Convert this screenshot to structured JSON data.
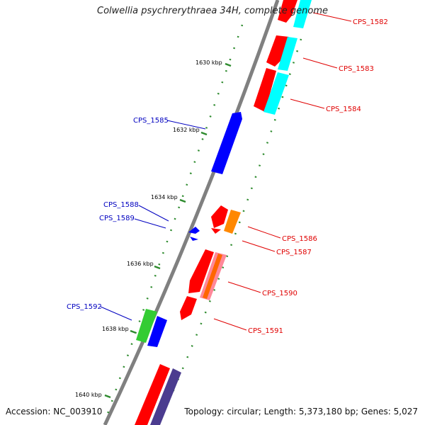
{
  "title": "Colwellia psychrerythraea 34H, complete genome",
  "footer": {
    "accession": "Accession: NC_003910",
    "summary": "Topology: circular; Length: 5,373,180 bp; Genes: 5,027"
  },
  "colors": {
    "backbone": "#808080",
    "plus_label": "#e00000",
    "minus_label": "#0000c0",
    "tick": "#2e8b2e",
    "red": "#ff0000",
    "cyan": "#00ffff",
    "blue": "#0000ff",
    "orange": "#ff8800",
    "green": "#33cc33",
    "navy": "#4b3c8f"
  },
  "ticks": [
    "1630 kbp",
    "1632 kbp",
    "1634 kbp",
    "1636 kbp",
    "1638 kbp",
    "1640 kbp"
  ],
  "genes": [
    {
      "id": "CPS_1582",
      "strand": "+"
    },
    {
      "id": "CPS_1583",
      "strand": "+"
    },
    {
      "id": "CPS_1584",
      "strand": "+"
    },
    {
      "id": "CPS_1585",
      "strand": "-"
    },
    {
      "id": "CPS_1586",
      "strand": "+"
    },
    {
      "id": "CPS_1587",
      "strand": "+"
    },
    {
      "id": "CPS_1588",
      "strand": "-"
    },
    {
      "id": "CPS_1589",
      "strand": "-"
    },
    {
      "id": "CPS_1590",
      "strand": "+"
    },
    {
      "id": "CPS_1591",
      "strand": "+"
    },
    {
      "id": "CPS_1592",
      "strand": "-"
    }
  ]
}
